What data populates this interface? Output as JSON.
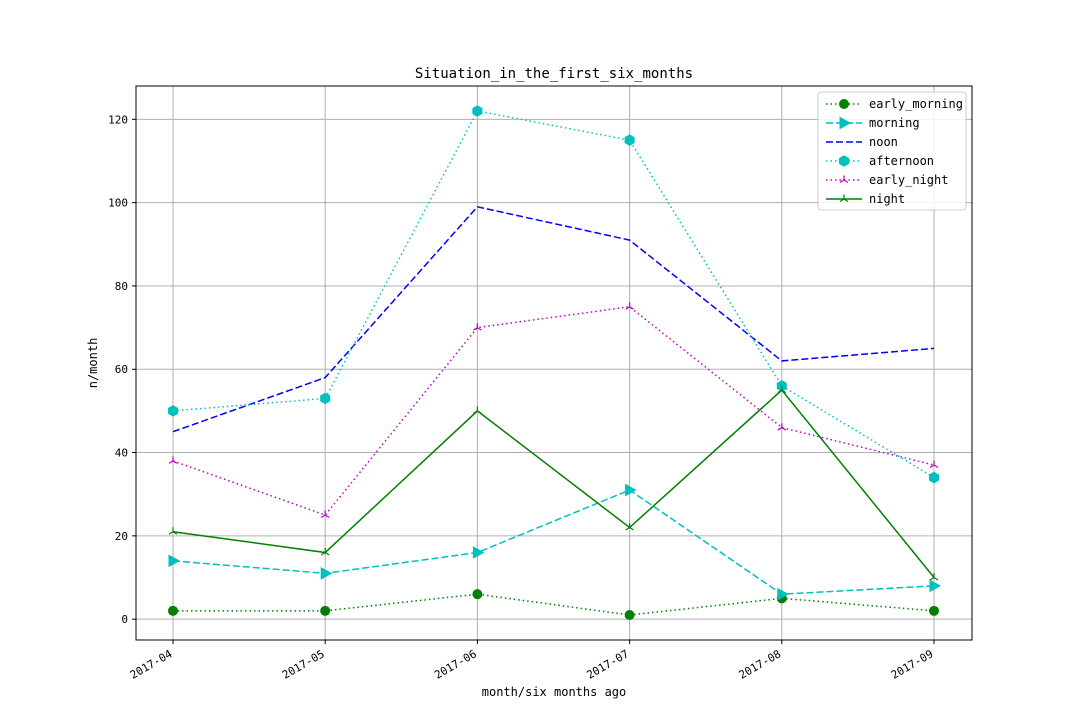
{
  "chart_data": {
    "type": "line",
    "title": "Situation_in_the_first_six_months",
    "xlabel": "month/six months ago",
    "ylabel": "n/month",
    "categories": [
      "2017-04",
      "2017-05",
      "2017-06",
      "2017-07",
      "2017-08",
      "2017-09"
    ],
    "ylim": [
      -5,
      128
    ],
    "yticks": [
      0,
      20,
      40,
      60,
      80,
      100,
      120
    ],
    "grid": true,
    "legend_position": "top-right",
    "series": [
      {
        "name": "early_morning",
        "values": [
          2,
          2,
          6,
          1,
          5,
          2
        ],
        "color": "#008000",
        "line_style": "dotted",
        "marker": "circle"
      },
      {
        "name": "morning",
        "values": [
          14,
          11,
          16,
          31,
          6,
          8
        ],
        "color": "#00bfbf",
        "line_style": "dashed",
        "marker": "triangle-right"
      },
      {
        "name": "noon",
        "values": [
          45,
          58,
          99,
          91,
          62,
          65
        ],
        "color": "#0000ff",
        "line_style": "dashed",
        "marker": "none"
      },
      {
        "name": "afternoon",
        "values": [
          50,
          53,
          122,
          115,
          56,
          34
        ],
        "color": "#00bfbf",
        "line_style": "dotted",
        "marker": "hexagon"
      },
      {
        "name": "early_night",
        "values": [
          38,
          25,
          70,
          75,
          46,
          37
        ],
        "color": "#bf00bf",
        "line_style": "dotted",
        "marker": "tri"
      },
      {
        "name": "night",
        "values": [
          21,
          16,
          50,
          22,
          55,
          10
        ],
        "color": "#008000",
        "line_style": "solid",
        "marker": "tri"
      }
    ]
  }
}
